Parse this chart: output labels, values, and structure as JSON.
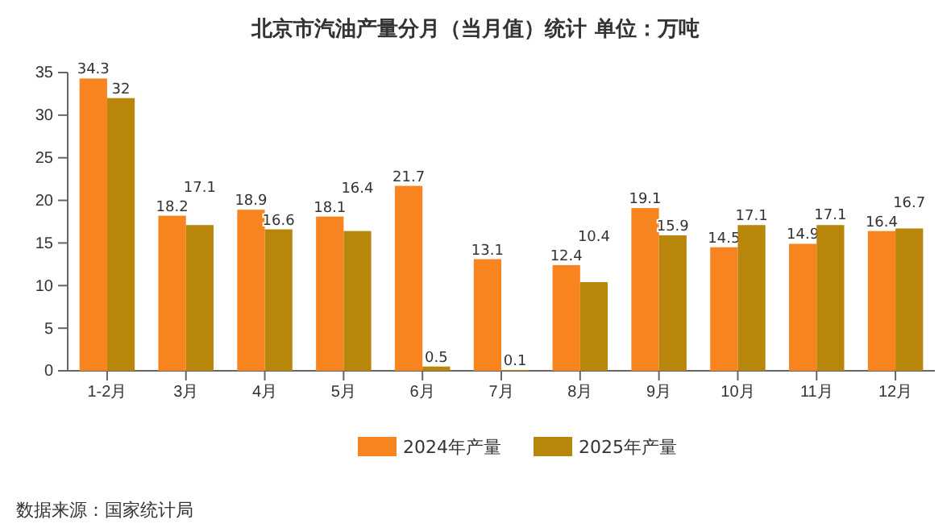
{
  "chart_data": {
    "type": "bar",
    "title": "北京市汽油产量分月（当月值）统计  单位：万吨",
    "categories": [
      "1-2月",
      "3月",
      "4月",
      "5月",
      "6月",
      "7月",
      "8月",
      "9月",
      "10月",
      "11月",
      "12月"
    ],
    "series": [
      {
        "name": "2024年产量",
        "color": "#f7841f",
        "values": [
          34.3,
          18.2,
          18.9,
          18.1,
          21.7,
          13.1,
          12.4,
          19.1,
          14.5,
          14.9,
          16.4
        ]
      },
      {
        "name": "2025年产量",
        "color": "#b8860b",
        "values": [
          32,
          17.1,
          16.6,
          16.4,
          0.5,
          0.1,
          10.4,
          15.9,
          17.1,
          17.1,
          16.7
        ]
      }
    ],
    "ylim": [
      0,
      35
    ],
    "yticks": [
      0,
      5,
      10,
      15,
      20,
      25,
      30,
      35
    ],
    "data_labels": true,
    "legend": "bottom",
    "annotations": [
      "数据来源：国家统计局"
    ]
  }
}
